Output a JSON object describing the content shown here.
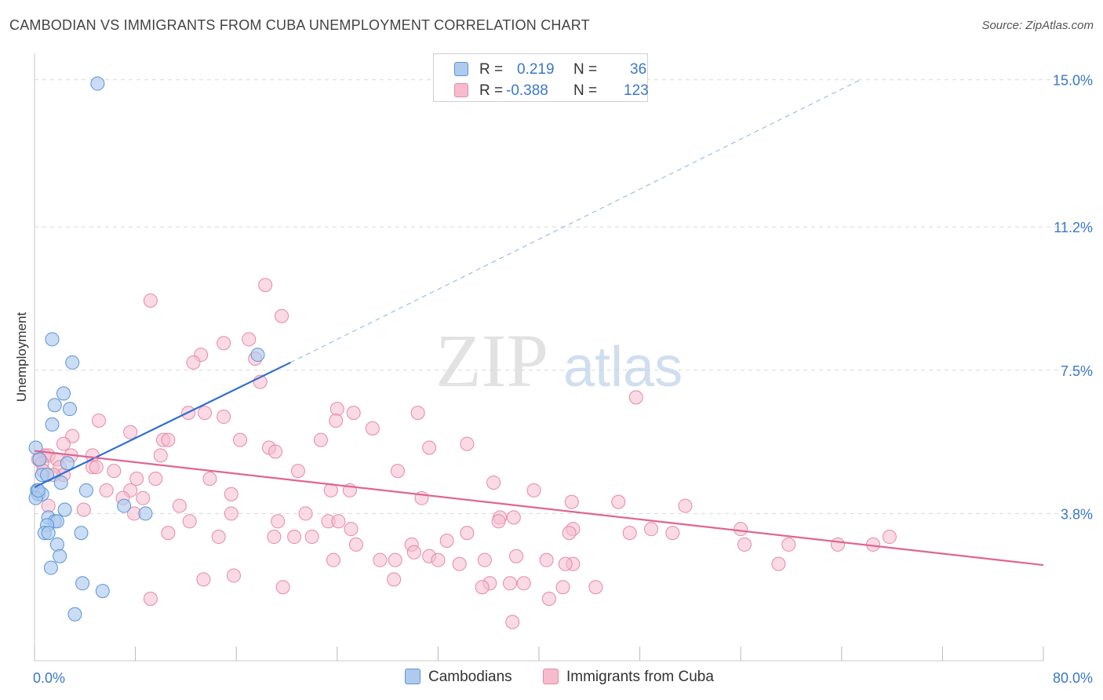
{
  "header": {
    "title": "CAMBODIAN VS IMMIGRANTS FROM CUBA UNEMPLOYMENT CORRELATION CHART",
    "source": "Source: ZipAtlas.com"
  },
  "legend": {
    "r_label": "R =",
    "n_label": "N =",
    "series": [
      {
        "name": "Cambodians",
        "r": "0.219",
        "n": "36"
      },
      {
        "name": "Immigrants from Cuba",
        "r": "-0.388",
        "n": "123"
      }
    ]
  },
  "watermark": {
    "zip": "ZIP",
    "atlas": "atlas"
  },
  "colors": {
    "cambodians_fill": "#aecbee",
    "cambodians_stroke": "#5b93d6",
    "cambodians_line": "#2f6fd0",
    "cuba_fill": "#f6bccd",
    "cuba_stroke": "#e58aa7",
    "cuba_line": "#e06592",
    "axis_label": "#3a78c9",
    "grid": "#d9d9d9"
  },
  "chart_data": {
    "type": "scatter",
    "title": "CAMBODIAN VS IMMIGRANTS FROM CUBA UNEMPLOYMENT CORRELATION CHART",
    "xlabel": "",
    "ylabel": "Unemployment",
    "xlim": [
      0,
      80
    ],
    "ylim": [
      0,
      15.6
    ],
    "x_tick_labels": [
      "0.0%",
      "80.0%"
    ],
    "y_ticks": [
      3.8,
      7.5,
      11.2,
      15.0
    ],
    "y_tick_labels": [
      "3.8%",
      "7.5%",
      "11.2%",
      "15.0%"
    ],
    "x_minor_ticks": [
      0,
      8,
      16,
      24,
      32,
      40,
      48,
      56,
      64,
      72,
      80
    ],
    "series": [
      {
        "name": "Cambodians",
        "points": [
          [
            5.0,
            14.9
          ],
          [
            1.4,
            8.3
          ],
          [
            3.0,
            7.7
          ],
          [
            2.3,
            6.9
          ],
          [
            1.6,
            6.6
          ],
          [
            2.8,
            6.5
          ],
          [
            1.4,
            6.1
          ],
          [
            17.7,
            7.9
          ],
          [
            0.1,
            5.5
          ],
          [
            0.4,
            5.2
          ],
          [
            2.6,
            5.1
          ],
          [
            0.6,
            4.8
          ],
          [
            1.0,
            4.8
          ],
          [
            2.1,
            4.6
          ],
          [
            0.2,
            4.4
          ],
          [
            0.3,
            4.3
          ],
          [
            0.6,
            4.3
          ],
          [
            4.1,
            4.4
          ],
          [
            0.1,
            4.2
          ],
          [
            7.1,
            4.0
          ],
          [
            2.4,
            3.9
          ],
          [
            8.8,
            3.8
          ],
          [
            1.1,
            3.7
          ],
          [
            1.6,
            3.6
          ],
          [
            1.8,
            3.6
          ],
          [
            1.0,
            3.5
          ],
          [
            0.8,
            3.3
          ],
          [
            1.1,
            3.3
          ],
          [
            3.7,
            3.3
          ],
          [
            1.8,
            3.0
          ],
          [
            2.0,
            2.7
          ],
          [
            1.3,
            2.4
          ],
          [
            3.8,
            2.0
          ],
          [
            5.4,
            1.8
          ],
          [
            3.2,
            1.2
          ],
          [
            0.3,
            4.4
          ]
        ]
      },
      {
        "name": "Immigrants from Cuba",
        "points": [
          [
            18.3,
            9.7
          ],
          [
            9.2,
            9.3
          ],
          [
            19.6,
            8.9
          ],
          [
            15.0,
            8.2
          ],
          [
            17.0,
            8.3
          ],
          [
            13.2,
            7.9
          ],
          [
            17.5,
            7.8
          ],
          [
            12.6,
            7.7
          ],
          [
            17.9,
            7.2
          ],
          [
            47.7,
            6.8
          ],
          [
            12.2,
            6.4
          ],
          [
            24.0,
            6.5
          ],
          [
            13.5,
            6.4
          ],
          [
            25.3,
            6.4
          ],
          [
            30.4,
            6.4
          ],
          [
            15.0,
            6.3
          ],
          [
            23.9,
            6.2
          ],
          [
            5.1,
            6.2
          ],
          [
            26.8,
            6.0
          ],
          [
            7.6,
            5.9
          ],
          [
            3.0,
            5.8
          ],
          [
            10.2,
            5.7
          ],
          [
            22.7,
            5.7
          ],
          [
            16.3,
            5.7
          ],
          [
            10.6,
            5.7
          ],
          [
            2.3,
            5.6
          ],
          [
            34.3,
            5.6
          ],
          [
            31.3,
            5.5
          ],
          [
            18.6,
            5.5
          ],
          [
            19.1,
            5.4
          ],
          [
            2.9,
            5.3
          ],
          [
            4.6,
            5.3
          ],
          [
            10.0,
            5.3
          ],
          [
            0.8,
            5.3
          ],
          [
            1.1,
            5.3
          ],
          [
            0.3,
            5.2
          ],
          [
            1.8,
            5.2
          ],
          [
            0.6,
            5.1
          ],
          [
            2.0,
            5.0
          ],
          [
            4.6,
            5.0
          ],
          [
            4.9,
            5.0
          ],
          [
            6.3,
            4.9
          ],
          [
            20.9,
            4.9
          ],
          [
            28.8,
            4.9
          ],
          [
            0.7,
            4.9
          ],
          [
            2.3,
            4.8
          ],
          [
            1.5,
            4.8
          ],
          [
            8.1,
            4.7
          ],
          [
            9.6,
            4.7
          ],
          [
            13.9,
            4.7
          ],
          [
            36.4,
            4.6
          ],
          [
            5.7,
            4.4
          ],
          [
            7.6,
            4.4
          ],
          [
            23.5,
            4.4
          ],
          [
            25.0,
            4.4
          ],
          [
            39.6,
            4.4
          ],
          [
            15.6,
            4.3
          ],
          [
            8.6,
            4.2
          ],
          [
            7.0,
            4.2
          ],
          [
            30.7,
            4.2
          ],
          [
            42.6,
            4.1
          ],
          [
            46.3,
            4.1
          ],
          [
            1.1,
            4.0
          ],
          [
            51.6,
            4.0
          ],
          [
            11.5,
            4.0
          ],
          [
            3.9,
            3.9
          ],
          [
            7.9,
            3.8
          ],
          [
            15.6,
            3.8
          ],
          [
            21.5,
            3.8
          ],
          [
            38.0,
            3.7
          ],
          [
            36.9,
            3.7
          ],
          [
            23.3,
            3.6
          ],
          [
            24.1,
            3.6
          ],
          [
            19.3,
            3.6
          ],
          [
            12.3,
            3.6
          ],
          [
            36.8,
            3.6
          ],
          [
            42.7,
            3.4
          ],
          [
            25.1,
            3.4
          ],
          [
            48.9,
            3.4
          ],
          [
            56.0,
            3.4
          ],
          [
            34.3,
            3.3
          ],
          [
            42.4,
            3.3
          ],
          [
            47.2,
            3.3
          ],
          [
            50.6,
            3.3
          ],
          [
            10.6,
            3.3
          ],
          [
            14.6,
            3.2
          ],
          [
            20.6,
            3.2
          ],
          [
            22.0,
            3.2
          ],
          [
            19.0,
            3.2
          ],
          [
            25.5,
            3.0
          ],
          [
            32.7,
            3.1
          ],
          [
            29.9,
            3.0
          ],
          [
            56.3,
            3.0
          ],
          [
            59.8,
            3.0
          ],
          [
            63.7,
            3.0
          ],
          [
            66.5,
            3.0
          ],
          [
            67.8,
            3.2
          ],
          [
            30.1,
            2.8
          ],
          [
            31.3,
            2.7
          ],
          [
            38.2,
            2.7
          ],
          [
            40.6,
            2.6
          ],
          [
            23.7,
            2.6
          ],
          [
            27.4,
            2.6
          ],
          [
            28.6,
            2.6
          ],
          [
            32.0,
            2.6
          ],
          [
            35.7,
            2.6
          ],
          [
            42.7,
            2.5
          ],
          [
            42.1,
            2.5
          ],
          [
            59.0,
            2.5
          ],
          [
            33.7,
            2.5
          ],
          [
            15.8,
            2.2
          ],
          [
            13.4,
            2.1
          ],
          [
            28.5,
            2.1
          ],
          [
            19.7,
            1.9
          ],
          [
            36.1,
            2.0
          ],
          [
            38.8,
            2.0
          ],
          [
            44.5,
            1.9
          ],
          [
            37.7,
            2.0
          ],
          [
            35.5,
            1.9
          ],
          [
            40.8,
            1.6
          ],
          [
            41.9,
            1.9
          ],
          [
            9.2,
            1.6
          ],
          [
            37.9,
            1.0
          ]
        ]
      }
    ],
    "trend_lines": [
      {
        "series": "Cambodians",
        "solid": [
          [
            0,
            4.48
          ],
          [
            20.3,
            7.7
          ]
        ],
        "dashed_to": [
          65.5,
          15.0
        ]
      },
      {
        "series": "Immigrants from Cuba",
        "solid": [
          [
            0,
            5.42
          ],
          [
            80,
            2.47
          ]
        ]
      }
    ]
  }
}
